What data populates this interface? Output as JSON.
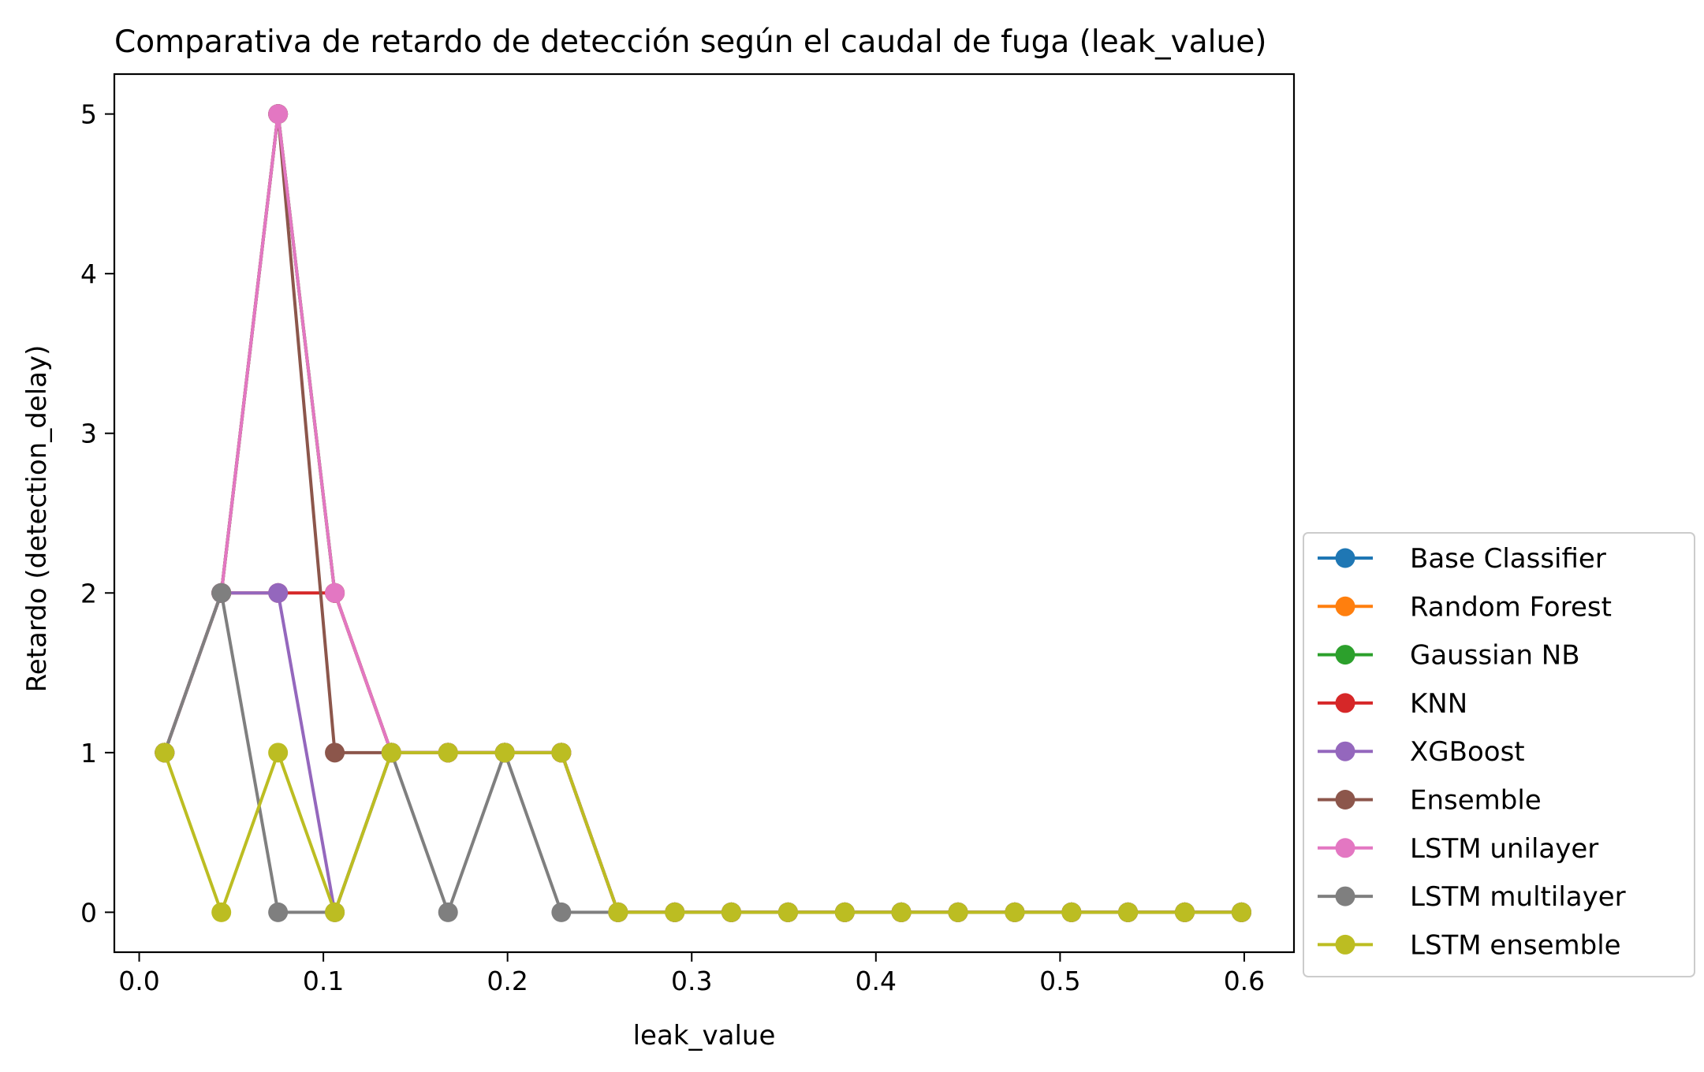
{
  "chart_data": {
    "type": "line",
    "title": "Comparativa de retardo de detección según el caudal de fuga (leak_value)",
    "xlabel": "leak_value",
    "ylabel": "Retardo (detection_delay)",
    "xlim": [
      -0.0135,
      0.627
    ],
    "ylim": [
      -0.25,
      5.25
    ],
    "xticks": [
      0.0,
      0.1,
      0.2,
      0.3,
      0.4,
      0.5,
      0.6
    ],
    "xtick_labels": [
      "0.0",
      "0.1",
      "0.2",
      "0.3",
      "0.4",
      "0.5",
      "0.6"
    ],
    "yticks": [
      0,
      1,
      2,
      3,
      4,
      5
    ],
    "ytick_labels": [
      "0",
      "1",
      "2",
      "3",
      "4",
      "5"
    ],
    "grid": false,
    "legend_position": "outside lower right",
    "x": [
      0.0138,
      0.0446,
      0.0754,
      0.1062,
      0.1369,
      0.1677,
      0.1985,
      0.2292,
      0.26,
      0.2908,
      0.3215,
      0.3523,
      0.3831,
      0.4138,
      0.4446,
      0.4754,
      0.5062,
      0.5369,
      0.5677,
      0.5985
    ],
    "series": [
      {
        "name": "Base Classifier",
        "color": "#1f77b4",
        "values": [
          1,
          2,
          5,
          2,
          1,
          1,
          1,
          1,
          0,
          0,
          0,
          0,
          0,
          0,
          0,
          0,
          0,
          0,
          0,
          0
        ]
      },
      {
        "name": "Random Forest",
        "color": "#ff7f0e",
        "values": [
          1,
          2,
          5,
          2,
          1,
          1,
          1,
          1,
          0,
          0,
          0,
          0,
          0,
          0,
          0,
          0,
          0,
          0,
          0,
          0
        ]
      },
      {
        "name": "Gaussian NB",
        "color": "#2ca02c",
        "values": [
          1,
          2,
          5,
          2,
          1,
          1,
          1,
          1,
          0,
          0,
          0,
          0,
          0,
          0,
          0,
          0,
          0,
          0,
          0,
          0
        ]
      },
      {
        "name": "KNN",
        "color": "#d62728",
        "values": [
          1,
          2,
          2,
          2,
          1,
          1,
          1,
          1,
          0,
          0,
          0,
          0,
          0,
          0,
          0,
          0,
          0,
          0,
          0,
          0
        ]
      },
      {
        "name": "XGBoost",
        "color": "#9467bd",
        "values": [
          1,
          2,
          2,
          0,
          1,
          1,
          1,
          1,
          0,
          0,
          0,
          0,
          0,
          0,
          0,
          0,
          0,
          0,
          0,
          0
        ]
      },
      {
        "name": "Ensemble",
        "color": "#8c564b",
        "values": [
          1,
          2,
          5,
          1,
          1,
          1,
          1,
          1,
          0,
          0,
          0,
          0,
          0,
          0,
          0,
          0,
          0,
          0,
          0,
          0
        ]
      },
      {
        "name": "LSTM unilayer",
        "color": "#e377c2",
        "values": [
          1,
          2,
          5,
          2,
          1,
          1,
          1,
          1,
          0,
          0,
          0,
          0,
          0,
          0,
          0,
          0,
          0,
          0,
          0,
          0
        ]
      },
      {
        "name": "LSTM multilayer",
        "color": "#7f7f7f",
        "values": [
          1,
          2,
          0,
          0,
          1,
          0,
          1,
          0,
          0,
          0,
          0,
          0,
          0,
          0,
          0,
          0,
          0,
          0,
          0,
          0
        ]
      },
      {
        "name": "LSTM ensemble",
        "color": "#bcbd22",
        "values": [
          1,
          0,
          1,
          0,
          1,
          1,
          1,
          1,
          0,
          0,
          0,
          0,
          0,
          0,
          0,
          0,
          0,
          0,
          0,
          0
        ]
      }
    ]
  }
}
